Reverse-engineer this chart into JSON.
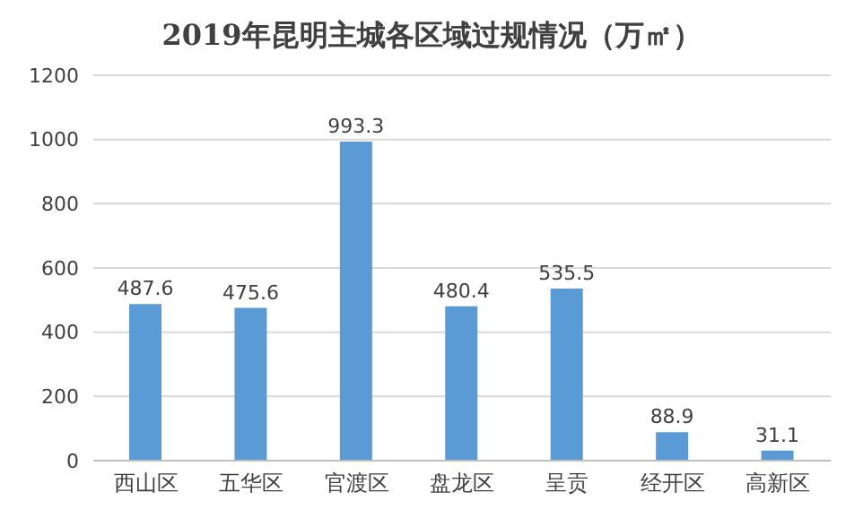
{
  "chart_data": {
    "type": "bar",
    "title": "2019年昆明主城各区域过规情况（万㎡）",
    "categories": [
      "西山区",
      "五华区",
      "官渡区",
      "盘龙区",
      "呈贡",
      "经开区",
      "高新区"
    ],
    "values": [
      487.6,
      475.6,
      993.3,
      480.4,
      535.5,
      88.9,
      31.1
    ],
    "color": "#5b9bd5",
    "ylim": [
      0,
      1200
    ],
    "yticks": [
      0,
      200,
      400,
      600,
      800,
      1000,
      1200
    ],
    "grid": "y",
    "data_labels": true
  }
}
